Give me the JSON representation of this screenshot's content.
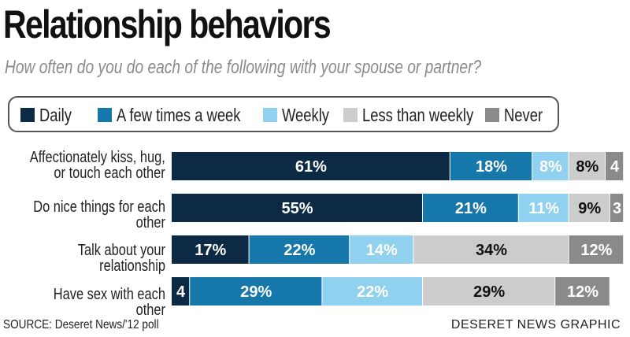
{
  "source": "SOURCE: Deseret News/'12 poll",
  "credit": "DESERET NEWS GRAPHIC",
  "colors": {
    "daily": "#0d2a45",
    "few_times_week": "#1677aa",
    "weekly": "#8fd1ee",
    "less_than_weekly": "#cccccc",
    "never": "#8a8a8a"
  },
  "chart_data": {
    "type": "bar",
    "orientation": "horizontal-stacked",
    "title": "Relationship behaviors",
    "subtitle": "How often do you do each of the following with your spouse or partner?",
    "categories": [
      "Affectionately kiss, hug,\nor touch each other",
      "Do nice things for each other",
      "Talk about your relationship",
      "Have sex with each other"
    ],
    "series": [
      {
        "name": "Daily",
        "values": [
          61,
          55,
          17,
          4
        ],
        "labels": [
          "61%",
          "55%",
          "17%",
          "4"
        ]
      },
      {
        "name": "A few times a week",
        "values": [
          18,
          21,
          22,
          29
        ],
        "labels": [
          "18%",
          "21%",
          "22%",
          "29%"
        ]
      },
      {
        "name": "Weekly",
        "values": [
          8,
          11,
          14,
          22
        ],
        "labels": [
          "8%",
          "11%",
          "14%",
          "22%"
        ]
      },
      {
        "name": "Less than weekly",
        "values": [
          8,
          9,
          34,
          29
        ],
        "labels": [
          "8%",
          "9%",
          "34%",
          "29%"
        ]
      },
      {
        "name": "Never",
        "values": [
          4,
          3,
          12,
          12
        ],
        "labels": [
          "4",
          "3",
          "12%",
          "12%"
        ]
      }
    ],
    "xlim": [
      0,
      100
    ],
    "legend_position": "top"
  }
}
